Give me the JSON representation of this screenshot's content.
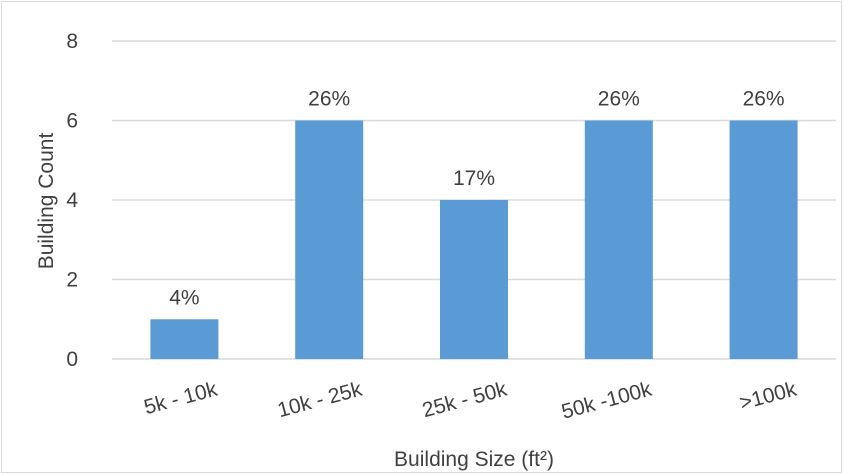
{
  "chart_data": {
    "type": "bar",
    "categories": [
      "5k - 10k",
      "10k - 25k",
      "25k - 50k",
      "50k -100k",
      ">100k"
    ],
    "values": [
      1,
      6,
      4,
      6,
      6
    ],
    "data_labels": [
      "4%",
      "26%",
      "17%",
      "26%",
      "26%"
    ],
    "title": "",
    "xlabel": "Building Size (ft²)",
    "ylabel": "Building Count",
    "ylim": [
      0,
      8
    ],
    "yticks": [
      "0",
      "2",
      "4",
      "6",
      "8"
    ],
    "grid": true,
    "bar_color": "#5b9bd5",
    "grid_color": "#d9d9d9"
  }
}
